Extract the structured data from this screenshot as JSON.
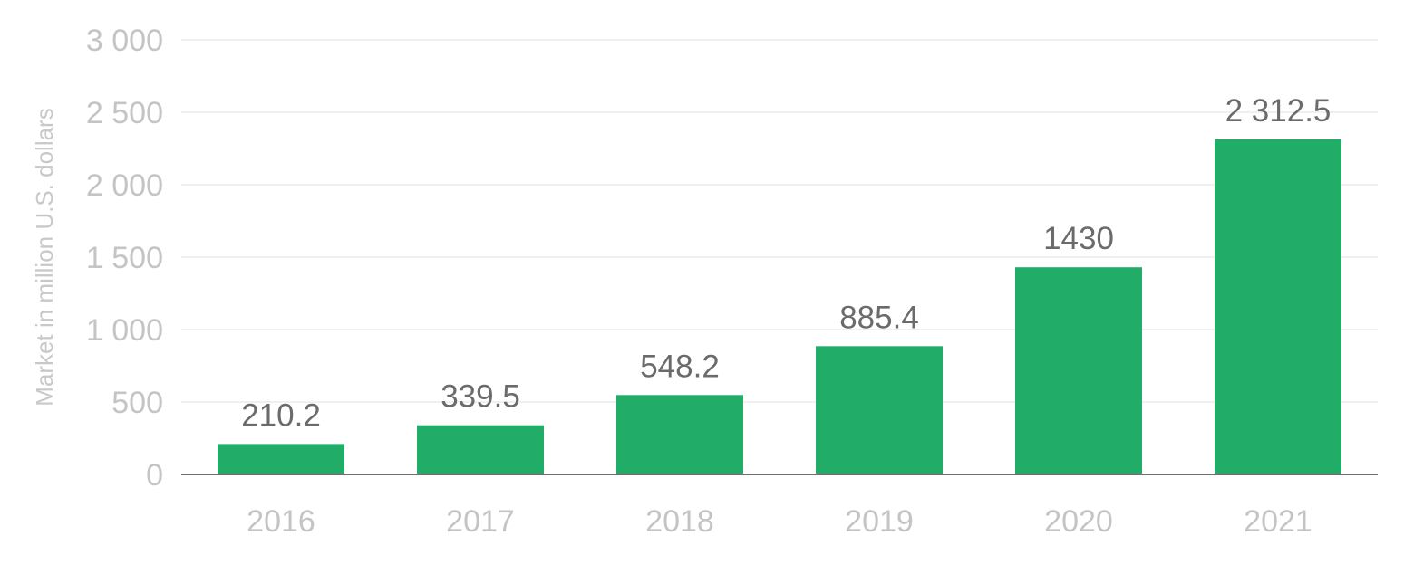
{
  "chart_data": {
    "type": "bar",
    "title": "",
    "xlabel": "",
    "ylabel": "Market in million U.S. dollars",
    "categories": [
      "2016",
      "2017",
      "2018",
      "2019",
      "2020",
      "2021"
    ],
    "values": [
      210.2,
      339.5,
      548.2,
      885.4,
      1430,
      2312.5
    ],
    "data_labels": [
      "210.2",
      "339.5",
      "548.2",
      "885.4",
      "1430",
      "2 312.5"
    ],
    "ylim": [
      0,
      3000
    ],
    "yticks": [
      0,
      500,
      1000,
      1500,
      2000,
      2500,
      3000
    ],
    "ytick_labels": [
      "0",
      "500",
      "1 000",
      "1 500",
      "2 000",
      "2 500",
      "3 000"
    ],
    "grid": true,
    "legend": "none",
    "colors": {
      "bar": "#21ad68",
      "grid": "#ececec",
      "axis": "#6f6f6f",
      "tick_text": "#c4c4c4",
      "label_text": "#6b6b6b"
    }
  }
}
